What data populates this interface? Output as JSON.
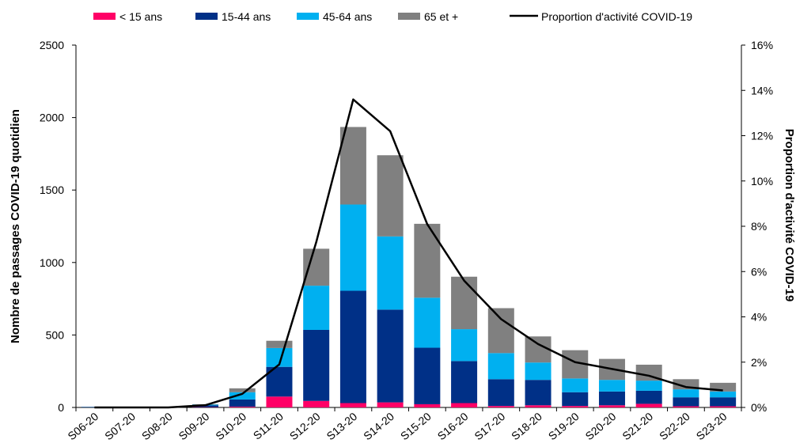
{
  "chart_data": {
    "type": "bar",
    "stacked": true,
    "categories": [
      "S06-20",
      "S07-20",
      "S08-20",
      "S09-20",
      "S10-20",
      "S11-20",
      "S12-20",
      "S13-20",
      "S14-20",
      "S15-20",
      "S16-20",
      "S17-20",
      "S18-20",
      "S19-20",
      "S20-20",
      "S21-20",
      "S22-20",
      "S23-20"
    ],
    "series": [
      {
        "name": "< 15 ans",
        "color": "#FF0066",
        "values": [
          0,
          0,
          0,
          2,
          5,
          75,
          45,
          30,
          35,
          22,
          30,
          10,
          15,
          10,
          15,
          25,
          8,
          8
        ]
      },
      {
        "name": "15-44 ans",
        "color": "#003087",
        "values": [
          3,
          2,
          2,
          12,
          50,
          205,
          490,
          775,
          640,
          390,
          290,
          185,
          175,
          95,
          95,
          90,
          62,
          62
        ]
      },
      {
        "name": "45-64 ans",
        "color": "#00B0F0",
        "values": [
          1,
          1,
          1,
          5,
          50,
          130,
          305,
          595,
          505,
          345,
          220,
          180,
          120,
          95,
          80,
          70,
          55,
          40
        ]
      },
      {
        "name": "65 et +",
        "color": "#808080",
        "values": [
          1,
          1,
          1,
          3,
          27,
          50,
          255,
          535,
          560,
          510,
          362,
          310,
          180,
          195,
          145,
          110,
          70,
          60
        ]
      }
    ],
    "line_series": {
      "name": "Proportion d'activité COVID-19",
      "color": "#000000",
      "axis": "right",
      "values": [
        0.0,
        0.0,
        0.0,
        0.1,
        0.6,
        1.9,
        7.3,
        13.6,
        12.2,
        8.1,
        5.6,
        3.9,
        2.8,
        2.0,
        1.7,
        1.4,
        0.9,
        0.75
      ]
    },
    "ylabel": "Nombre de passages COVID-19 quotidien",
    "y2label": "Proportion d'activité COVID-19",
    "ylim": [
      0,
      2500
    ],
    "y_ticks": [
      "0",
      "500",
      "1000",
      "1500",
      "2000",
      "2500"
    ],
    "y2lim": [
      0,
      16
    ],
    "y2_ticks": [
      "0%",
      "2%",
      "4%",
      "6%",
      "8%",
      "10%",
      "12%",
      "14%",
      "16%"
    ],
    "legend_position": "top",
    "grid": false
  }
}
